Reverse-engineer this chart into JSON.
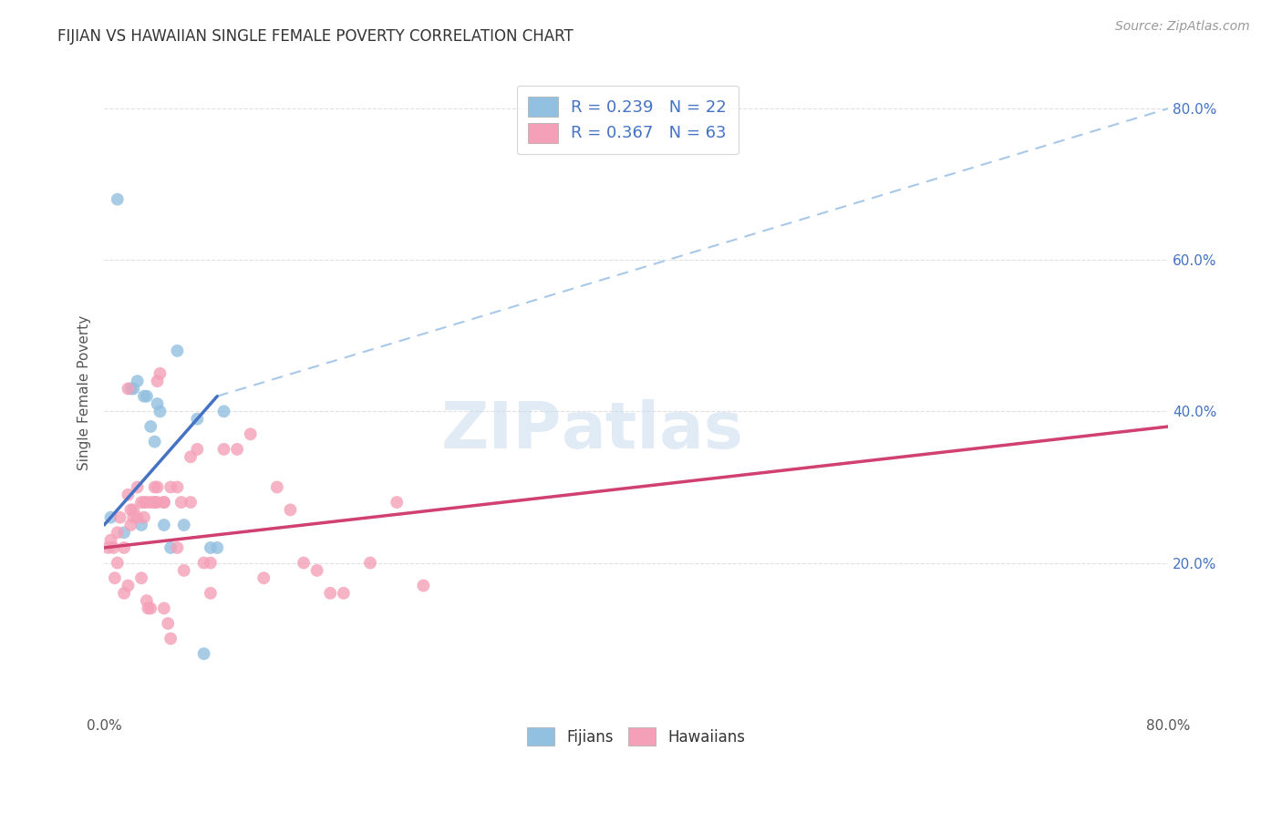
{
  "title": "FIJIAN VS HAWAIIAN SINGLE FEMALE POVERTY CORRELATION CHART",
  "source": "Source: ZipAtlas.com",
  "ylabel": "Single Female Poverty",
  "fijian_label": "Fijians",
  "hawaiian_label": "Hawaiians",
  "fijian_R": "R = 0.239",
  "fijian_N": "N = 22",
  "hawaiian_R": "R = 0.367",
  "hawaiian_N": "N = 63",
  "fijian_color": "#92C0E0",
  "hawaiian_color": "#F4A0B8",
  "trendline_fijian_color": "#4472C4",
  "trendline_hawaiian_color": "#D04070",
  "dashed_line_color": "#A8C8E8",
  "background_color": "#FFFFFF",
  "grid_color": "#DDDDDD",
  "fijian_x": [
    0.5,
    1.0,
    1.5,
    2.0,
    2.2,
    2.5,
    2.8,
    3.0,
    3.2,
    3.5,
    3.8,
    4.0,
    4.2,
    4.5,
    5.0,
    5.5,
    6.0,
    7.0,
    7.5,
    8.0,
    8.5,
    9.0
  ],
  "fijian_y": [
    26,
    68,
    24,
    43,
    43,
    44,
    25,
    42,
    42,
    38,
    36,
    41,
    40,
    25,
    22,
    48,
    25,
    39,
    8,
    22,
    22,
    40
  ],
  "hawaiian_x": [
    0.3,
    0.5,
    0.7,
    0.8,
    1.0,
    1.0,
    1.2,
    1.5,
    1.5,
    1.8,
    1.8,
    1.8,
    2.0,
    2.0,
    2.2,
    2.2,
    2.5,
    2.5,
    2.8,
    2.8,
    3.0,
    3.0,
    3.2,
    3.2,
    3.3,
    3.5,
    3.5,
    3.8,
    3.8,
    3.8,
    4.0,
    4.0,
    4.0,
    4.2,
    4.5,
    4.5,
    4.5,
    4.8,
    5.0,
    5.0,
    5.5,
    5.5,
    5.8,
    6.0,
    6.5,
    6.5,
    7.0,
    7.5,
    8.0,
    8.0,
    9.0,
    10.0,
    11.0,
    12.0,
    13.0,
    14.0,
    15.0,
    16.0,
    17.0,
    18.0,
    20.0,
    22.0,
    24.0
  ],
  "hawaiian_y": [
    22,
    23,
    22,
    18,
    20,
    24,
    26,
    22,
    16,
    29,
    43,
    17,
    25,
    27,
    27,
    26,
    30,
    26,
    18,
    28,
    26,
    28,
    28,
    15,
    14,
    14,
    28,
    28,
    30,
    28,
    44,
    28,
    30,
    45,
    28,
    28,
    14,
    12,
    10,
    30,
    30,
    22,
    28,
    19,
    28,
    34,
    35,
    20,
    20,
    16,
    35,
    35,
    37,
    18,
    30,
    27,
    20,
    19,
    16,
    16,
    20,
    28,
    17
  ],
  "trendline_fijian_start_x": 0,
  "trendline_fijian_end_x": 8.5,
  "trendline_fijian_start_y": 25,
  "trendline_fijian_end_y": 42,
  "trendline_fijian_dash_end_x": 80,
  "trendline_fijian_dash_end_y": 80,
  "trendline_hawaiian_start_x": 0,
  "trendline_hawaiian_end_x": 80,
  "trendline_hawaiian_start_y": 22,
  "trendline_hawaiian_end_y": 38,
  "xlim": [
    0,
    80
  ],
  "ylim": [
    0,
    85
  ],
  "ytick_vals": [
    20,
    40,
    60,
    80
  ],
  "ytick_labels": [
    "20.0%",
    "40.0%",
    "60.0%",
    "80.0%"
  ]
}
